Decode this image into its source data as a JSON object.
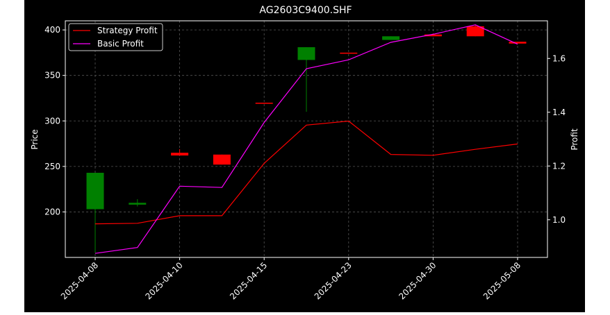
{
  "chart_data": {
    "type": "candlestick-with-lines",
    "title": "AG2603C9400.SHF",
    "ylabel_left": "Price",
    "ylabel_right": "Profit",
    "ylim_left": [
      150,
      410
    ],
    "ylim_right": [
      0.86,
      1.74
    ],
    "y_ticks_left": [
      200,
      250,
      300,
      350,
      400
    ],
    "y_ticks_right": [
      1.0,
      1.2,
      1.4,
      1.6
    ],
    "grid": true,
    "legend_position": "top-left",
    "x_tick_labels": [
      "2025-04-08",
      "2025-04-10",
      "2025-04-15",
      "2025-04-23",
      "2025-04-30",
      "2025-05-08"
    ],
    "x_tick_index": [
      0,
      2,
      4,
      6,
      8,
      10
    ],
    "candles": [
      {
        "open": 203,
        "close": 243,
        "high": 243,
        "low": 155,
        "direction": "up"
      },
      {
        "open": 208,
        "close": 210,
        "high": 214,
        "low": 206,
        "direction": "up"
      },
      {
        "open": 265,
        "close": 262,
        "high": 269,
        "low": 262,
        "direction": "down"
      },
      {
        "open": 263,
        "close": 252,
        "high": 263,
        "low": 252,
        "direction": "down"
      },
      {
        "open": 320,
        "close": 319,
        "high": 320,
        "low": 319,
        "direction": "down"
      },
      {
        "open": 367,
        "close": 381,
        "high": 381,
        "low": 310,
        "direction": "up"
      },
      {
        "open": 375,
        "close": 374,
        "high": 375,
        "low": 374,
        "direction": "down"
      },
      {
        "open": 389,
        "close": 393,
        "high": 393,
        "low": 389,
        "direction": "up"
      },
      {
        "open": 395,
        "close": 393,
        "high": 396,
        "low": 393,
        "direction": "down"
      },
      {
        "open": 404,
        "close": 393,
        "high": 405,
        "low": 393,
        "direction": "down"
      },
      {
        "open": 387,
        "close": 385,
        "high": 387,
        "low": 385,
        "direction": "down"
      }
    ],
    "series": [
      {
        "name": "Strategy Profit",
        "color": "#ff0000",
        "values": [
          0.985,
          0.987,
          1.015,
          1.015,
          1.21,
          1.352,
          1.367,
          1.243,
          1.24,
          1.262,
          1.282
        ]
      },
      {
        "name": "Basic Profit",
        "color": "#ff00ff",
        "values": [
          0.875,
          0.897,
          1.125,
          1.12,
          1.362,
          1.562,
          1.595,
          1.66,
          1.69,
          1.725,
          1.653
        ]
      }
    ],
    "colors": {
      "up": "#008000",
      "down": "#ff0000",
      "background": "#000000",
      "axes": "#ffffff",
      "grid": "#555555"
    }
  }
}
